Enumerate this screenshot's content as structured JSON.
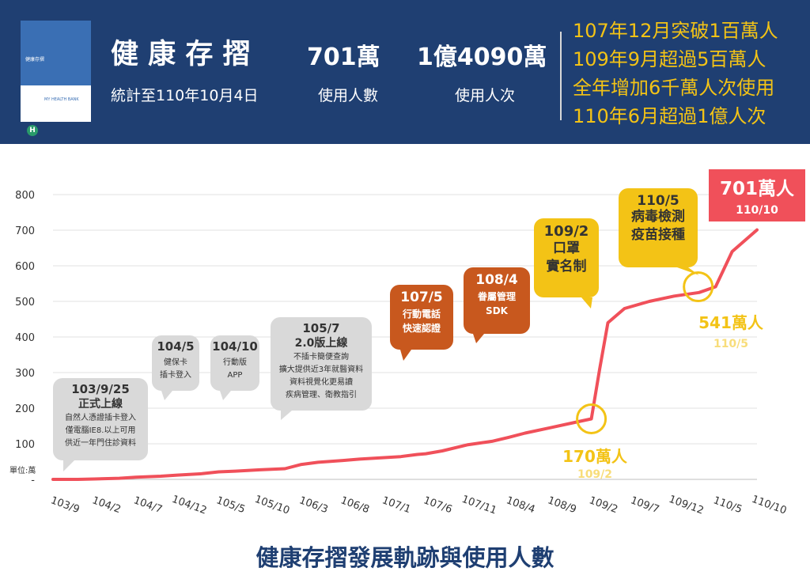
{
  "header": {
    "title": "健 康 存 摺",
    "stat_date": "統計至110年10月4日",
    "users_value": "701萬",
    "users_label": "使用人數",
    "visits_value": "1億4090萬",
    "visits_label": "使用人次",
    "book": {
      "title": "健康存摺",
      "subtitle": "MY HEALTH BANK",
      "logo_letter": "H"
    },
    "milestones": [
      "107年12月突破1百萬人",
      "109年9月超過5百萬人",
      "全年增加6千萬人次使用",
      "110年6月超過1億人次"
    ]
  },
  "footer_title": "健康存摺發展軌跡與使用人數",
  "colors": {
    "header_bg": "#1f3f72",
    "line": "#f0505a",
    "highlight": "#f3c316",
    "gray_callout": "#d9d9d9",
    "orange_callout": "#c8581e",
    "yellow_callout": "#f3c316",
    "red_badge": "#f0505a"
  },
  "chart_data": {
    "type": "line",
    "unit_label": "單位:萬",
    "y_ticks": [
      "800",
      "700",
      "600",
      "500",
      "400",
      "300",
      "200",
      "100",
      "-"
    ],
    "ylim": [
      0,
      800
    ],
    "x_ticks": [
      "103/9",
      "104/2",
      "104/7",
      "104/12",
      "105/5",
      "105/10",
      "106/3",
      "106/8",
      "107/1",
      "107/6",
      "107/11",
      "108/4",
      "108/9",
      "109/2",
      "109/7",
      "109/12",
      "110/5",
      "110/10"
    ],
    "grid": true,
    "series": [
      {
        "values": [
          {
            "x": "103/9",
            "y": 0
          },
          {
            "x": "103/12",
            "y": 0
          },
          {
            "x": "104/2",
            "y": 1
          },
          {
            "x": "104/5",
            "y": 3
          },
          {
            "x": "104/7",
            "y": 6
          },
          {
            "x": "104/10",
            "y": 9
          },
          {
            "x": "104/12",
            "y": 12
          },
          {
            "x": "105/3",
            "y": 16
          },
          {
            "x": "105/5",
            "y": 21
          },
          {
            "x": "105/7",
            "y": 23
          },
          {
            "x": "105/10",
            "y": 27
          },
          {
            "x": "106/1",
            "y": 30
          },
          {
            "x": "106/3",
            "y": 42
          },
          {
            "x": "106/5",
            "y": 48
          },
          {
            "x": "106/8",
            "y": 53
          },
          {
            "x": "106/10",
            "y": 57
          },
          {
            "x": "107/1",
            "y": 61
          },
          {
            "x": "107/3",
            "y": 64
          },
          {
            "x": "107/5",
            "y": 70
          },
          {
            "x": "107/6",
            "y": 72
          },
          {
            "x": "107/8",
            "y": 80
          },
          {
            "x": "107/11",
            "y": 97
          },
          {
            "x": "108/2",
            "y": 107
          },
          {
            "x": "108/4",
            "y": 118
          },
          {
            "x": "108/6",
            "y": 130
          },
          {
            "x": "108/9",
            "y": 145
          },
          {
            "x": "108/12",
            "y": 160
          },
          {
            "x": "109/2",
            "y": 170
          },
          {
            "x": "109/3",
            "y": 310
          },
          {
            "x": "109/4",
            "y": 440
          },
          {
            "x": "109/6",
            "y": 480
          },
          {
            "x": "109/9",
            "y": 500
          },
          {
            "x": "109/12",
            "y": 515
          },
          {
            "x": "110/3",
            "y": 525
          },
          {
            "x": "110/5",
            "y": 541
          },
          {
            "x": "110/7",
            "y": 640
          },
          {
            "x": "110/10",
            "y": 701
          }
        ]
      }
    ],
    "callouts": [
      {
        "style": "gray",
        "title": "103/9/25",
        "subtitle": "正式上線",
        "lines": [
          "自然人憑證插卡登入",
          "僅電腦IE8.以上可用",
          "供近一年門住診資料"
        ]
      },
      {
        "style": "gray",
        "title": "104/5",
        "subtitle": "",
        "lines": [
          "健保卡",
          "插卡登入"
        ]
      },
      {
        "style": "gray",
        "title": "104/10",
        "subtitle": "",
        "lines": [
          "行動版",
          "APP"
        ]
      },
      {
        "style": "gray",
        "title": "105/7",
        "subtitle": "2.0版上線",
        "lines": [
          "不插卡簡便查詢",
          "擴大提供近3年就醫資料",
          "資料視覺化更易讀",
          "疾病管理、衛教指引"
        ]
      },
      {
        "style": "orange",
        "title": "107/5",
        "subtitle": "",
        "lines": [
          "行動電話",
          "快速認證"
        ]
      },
      {
        "style": "orange",
        "title": "108/4",
        "subtitle": "",
        "lines": [
          "眷屬管理",
          "SDK"
        ]
      },
      {
        "style": "yellow",
        "title": "109/2",
        "subtitle": "",
        "lines": [
          "口罩",
          "實名制"
        ]
      },
      {
        "style": "yellow",
        "title": "110/5",
        "subtitle": "",
        "lines": [
          "病毒檢測",
          "疫苗接種"
        ]
      }
    ],
    "highlights": [
      {
        "x": "109/2",
        "value": "170萬人",
        "date": "109/2"
      },
      {
        "x": "110/5",
        "value": "541萬人",
        "date": "110/5"
      }
    ],
    "end_badge": {
      "value": "701萬人",
      "date": "110/10"
    }
  }
}
